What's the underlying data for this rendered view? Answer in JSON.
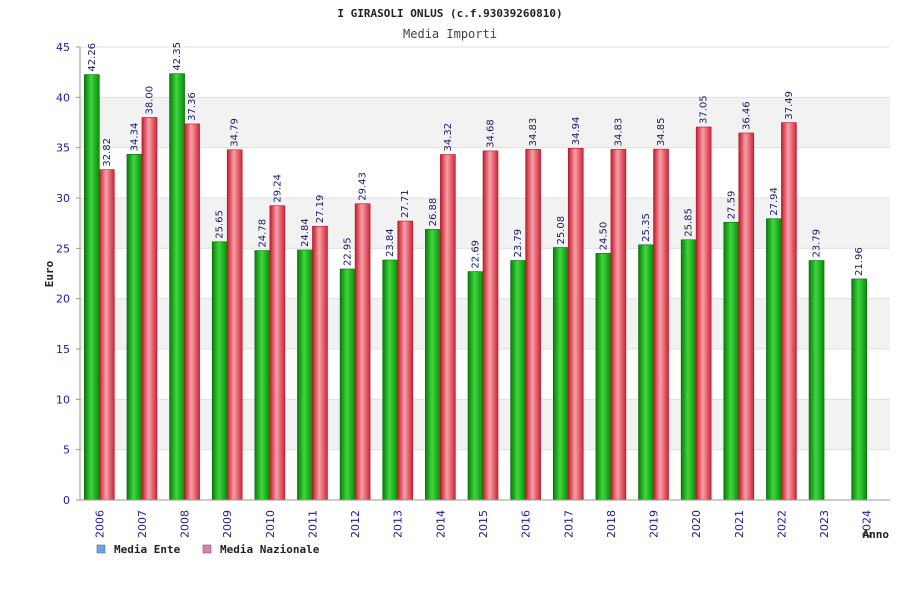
{
  "chart_data": {
    "type": "bar",
    "title": "I GIRASOLI ONLUS (c.f.93039260810)",
    "subtitle": "Media Importi",
    "ylabel": "Euro",
    "xlabel": "Anno",
    "ylim": [
      0,
      45
    ],
    "yticks": [
      "0",
      "5",
      "10",
      "15",
      "20",
      "25",
      "30",
      "35",
      "40",
      "45"
    ],
    "categories": [
      "2006",
      "2007",
      "2008",
      "2009",
      "2010",
      "2011",
      "2012",
      "2013",
      "2014",
      "2015",
      "2016",
      "2017",
      "2018",
      "2019",
      "2020",
      "2021",
      "2022",
      "2023",
      "2024"
    ],
    "series": [
      {
        "name": "Media Ente",
        "color": "#22aa22",
        "legend_color": "#6aa6f0",
        "values": [
          42.26,
          34.34,
          42.35,
          25.65,
          24.78,
          24.84,
          22.95,
          23.84,
          26.88,
          22.69,
          23.79,
          25.08,
          24.5,
          25.35,
          25.85,
          27.59,
          27.94,
          23.79,
          21.96
        ],
        "labels": [
          "42.26",
          "34.34",
          "42.35",
          "25.65",
          "24.78",
          "24.84",
          "22.95",
          "23.84",
          "26.88",
          "22.69",
          "23.79",
          "25.08",
          "24.50",
          "25.35",
          "25.85",
          "27.59",
          "27.94",
          "23.79",
          "21.96"
        ]
      },
      {
        "name": "Media Nazionale",
        "color": "#e03040",
        "legend_color": "#e07ab0",
        "values": [
          32.82,
          38.0,
          37.36,
          34.79,
          29.24,
          27.19,
          29.43,
          27.71,
          34.32,
          34.68,
          34.83,
          34.94,
          34.83,
          34.85,
          37.05,
          36.46,
          37.49,
          null,
          null
        ],
        "labels": [
          "32.82",
          "38.00",
          "37.36",
          "34.79",
          "29.24",
          "27.19",
          "29.43",
          "27.71",
          "34.32",
          "34.68",
          "34.83",
          "34.94",
          "34.83",
          "34.85",
          "37.05",
          "36.46",
          "37.49",
          null,
          null
        ]
      }
    ],
    "grid": true,
    "legend_position": "bottom-left"
  }
}
